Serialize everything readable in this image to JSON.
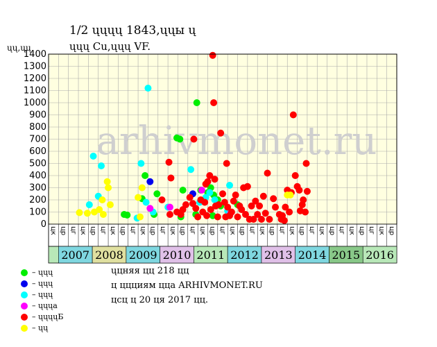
{
  "chart_data": {
    "type": "scatter",
    "title_line1": "1/2 ųųųų 1843,ųųы ų",
    "title_line2": "ųųų Cu,ųųų VF.",
    "ylabel": "ųų,ųų",
    "watermark": "arhivmonet.ru",
    "ylim": [
      0,
      1400
    ],
    "yticks": [
      0,
      100,
      200,
      300,
      400,
      500,
      600,
      700,
      800,
      900,
      1000,
      1100,
      1200,
      1300,
      1400
    ],
    "grid": true,
    "quarter_labels": [
      "цк",
      "цр",
      "цг",
      "цк",
      "цр",
      "цг",
      "цк",
      "цр",
      "цг",
      "цк",
      "цр",
      "цг",
      "цк",
      "цр",
      "цг",
      "цк",
      "цр",
      "цг",
      "цк",
      "цр",
      "цг",
      "цк",
      "цр",
      "цг",
      "цк",
      "цр",
      "цг",
      "цк",
      "цр",
      "цг",
      "цк",
      "цр",
      "цг",
      "цк",
      "цр"
    ],
    "years": [
      "2007",
      "2008",
      "2009",
      "2010",
      "2011",
      "2012",
      "2013",
      "2014",
      "2015",
      "2016"
    ],
    "year_colors": [
      "#7fd7e0",
      "#e0e0a0",
      "#7fd7e0",
      "#e0c0e8",
      "#b8e8b8",
      "#7fd7e0",
      "#e0c0e8",
      "#7fd7e0",
      "#88c888",
      "#b8e8b8"
    ],
    "series": [
      {
        "name": "ųųų",
        "color": "#00ee00",
        "points": [
          [
            7.6,
            80
          ],
          [
            7.9,
            75
          ],
          [
            9.4,
            210
          ],
          [
            9.7,
            400
          ],
          [
            10.6,
            80
          ],
          [
            10.9,
            250
          ],
          [
            12.9,
            710
          ],
          [
            13.2,
            700
          ],
          [
            13.5,
            280
          ],
          [
            13.3,
            60
          ],
          [
            14.8,
            80
          ],
          [
            14.9,
            1000
          ],
          [
            15.3,
            280
          ],
          [
            16.0,
            260
          ],
          [
            16.3,
            300
          ],
          [
            16.5,
            70
          ],
          [
            16.6,
            240
          ],
          [
            17.0,
            200
          ],
          [
            17.3,
            150
          ],
          [
            19.0,
            160
          ]
        ]
      },
      {
        "name": "ųųų",
        "color": "#0000ee",
        "points": [
          [
            10.2,
            350
          ],
          [
            14.5,
            250
          ]
        ]
      },
      {
        "name": "ųųų",
        "color": "#00ffff",
        "points": [
          [
            4.1,
            160
          ],
          [
            4.5,
            560
          ],
          [
            5.0,
            230
          ],
          [
            5.3,
            480
          ],
          [
            8.9,
            50
          ],
          [
            9.3,
            500
          ],
          [
            9.8,
            180
          ],
          [
            10.0,
            1120
          ],
          [
            10.5,
            100
          ],
          [
            12.0,
            140
          ],
          [
            14.3,
            450
          ],
          [
            15.2,
            180
          ],
          [
            15.8,
            220
          ],
          [
            16.2,
            260
          ],
          [
            16.7,
            200
          ],
          [
            18.2,
            320
          ],
          [
            18.0,
            110
          ]
        ]
      },
      {
        "name": "ųųųа",
        "color": "#ff00ff",
        "points": [
          [
            10.2,
            130
          ],
          [
            12.2,
            140
          ],
          [
            15.4,
            280
          ],
          [
            18.3,
            90
          ]
        ]
      },
      {
        "name": "ųųųųБ",
        "color": "#ff0000",
        "points": [
          [
            11.4,
            200
          ],
          [
            12.1,
            510
          ],
          [
            12.3,
            380
          ],
          [
            12.2,
            80
          ],
          [
            12.9,
            100
          ],
          [
            13.3,
            80
          ],
          [
            13.5,
            120
          ],
          [
            13.8,
            160
          ],
          [
            14.2,
            220
          ],
          [
            14.5,
            170
          ],
          [
            14.6,
            700
          ],
          [
            14.8,
            130
          ],
          [
            15.0,
            60
          ],
          [
            15.3,
            200
          ],
          [
            15.5,
            100
          ],
          [
            15.7,
            180
          ],
          [
            15.8,
            330
          ],
          [
            15.9,
            70
          ],
          [
            16.0,
            350
          ],
          [
            16.2,
            400
          ],
          [
            16.3,
            120
          ],
          [
            16.5,
            1390
          ],
          [
            16.6,
            1000
          ],
          [
            16.7,
            370
          ],
          [
            16.8,
            150
          ],
          [
            17.0,
            60
          ],
          [
            17.1,
            160
          ],
          [
            17.3,
            750
          ],
          [
            17.5,
            250
          ],
          [
            17.7,
            180
          ],
          [
            17.8,
            60
          ],
          [
            17.9,
            500
          ],
          [
            18.0,
            140
          ],
          [
            18.2,
            70
          ],
          [
            18.4,
            100
          ],
          [
            18.6,
            190
          ],
          [
            18.8,
            240
          ],
          [
            19.0,
            60
          ],
          [
            19.2,
            150
          ],
          [
            19.4,
            120
          ],
          [
            19.6,
            300
          ],
          [
            19.8,
            80
          ],
          [
            20.0,
            310
          ],
          [
            20.2,
            40
          ],
          [
            20.4,
            150
          ],
          [
            20.6,
            40
          ],
          [
            20.8,
            190
          ],
          [
            21.0,
            80
          ],
          [
            21.2,
            150
          ],
          [
            21.4,
            40
          ],
          [
            21.6,
            230
          ],
          [
            21.8,
            90
          ],
          [
            22.0,
            420
          ],
          [
            22.2,
            40
          ],
          [
            22.6,
            210
          ],
          [
            22.8,
            140
          ],
          [
            23.2,
            80
          ],
          [
            23.4,
            40
          ],
          [
            23.5,
            70
          ],
          [
            23.7,
            30
          ],
          [
            23.8,
            140
          ],
          [
            24.0,
            280
          ],
          [
            24.2,
            100
          ],
          [
            24.4,
            260
          ],
          [
            24.6,
            900
          ],
          [
            24.8,
            400
          ],
          [
            25.0,
            310
          ],
          [
            25.2,
            280
          ],
          [
            25.3,
            110
          ],
          [
            25.5,
            160
          ],
          [
            25.6,
            200
          ],
          [
            25.8,
            100
          ],
          [
            25.9,
            500
          ],
          [
            26.0,
            270
          ]
        ]
      },
      {
        "name": "ųų",
        "color": "#ffff00",
        "points": [
          [
            3.1,
            95
          ],
          [
            3.9,
            90
          ],
          [
            4.6,
            100
          ],
          [
            5.1,
            120
          ],
          [
            5.4,
            200
          ],
          [
            5.5,
            80
          ],
          [
            5.9,
            350
          ],
          [
            6.0,
            300
          ],
          [
            6.2,
            160
          ],
          [
            9.0,
            220
          ],
          [
            9.2,
            60
          ],
          [
            9.4,
            300
          ],
          [
            24.0,
            240
          ],
          [
            24.3,
            240
          ]
        ]
      }
    ],
    "notes": [
      "ųцняя цц 218 цц",
      "ц ццциям цца ARHIVMONET.RU",
      "цсц ц 20 ця 2017 цц."
    ]
  }
}
